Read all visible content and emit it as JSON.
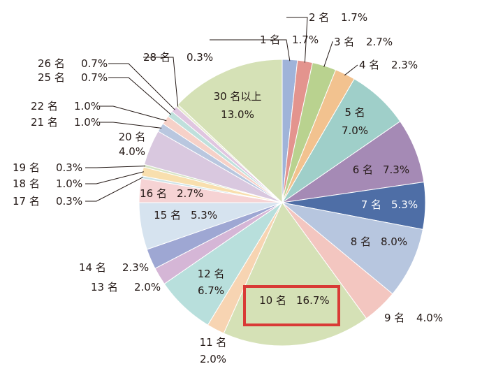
{
  "chart_data": {
    "type": "pie",
    "start": "12 o'clock",
    "direction": "clockwise",
    "slices": [
      {
        "label": "1 名",
        "value": 1.7,
        "pct": "1.7%",
        "color": "#9fb3d9"
      },
      {
        "label": "2 名",
        "value": 1.7,
        "pct": "1.7%",
        "color": "#e3948e"
      },
      {
        "label": "3 名",
        "value": 2.7,
        "pct": "2.7%",
        "color": "#b9d28f"
      },
      {
        "label": "4 名",
        "value": 2.3,
        "pct": "2.3%",
        "color": "#f2c28f"
      },
      {
        "label": "5 名",
        "value": 7.0,
        "pct": "7.0%",
        "color": "#9fcfc9"
      },
      {
        "label": "6 名",
        "value": 7.3,
        "pct": "7.3%",
        "color": "#a58ab5"
      },
      {
        "label": "7 名",
        "value": 5.3,
        "pct": "5.3%",
        "color": "#4e6ea6"
      },
      {
        "label": "8 名",
        "value": 8.0,
        "pct": "8.0%",
        "color": "#b7c6df"
      },
      {
        "label": "9 名",
        "value": 4.0,
        "pct": "4.0%",
        "color": "#f3c6c0"
      },
      {
        "label": "10 名",
        "value": 16.7,
        "pct": "16.7%",
        "color": "#d5e1b6",
        "highlight": true
      },
      {
        "label": "11 名",
        "value": 2.0,
        "pct": "2.0%",
        "color": "#f7d4b2"
      },
      {
        "label": "12 名",
        "value": 6.7,
        "pct": "6.7%",
        "color": "#b8dfdc"
      },
      {
        "label": "13 名",
        "value": 2.0,
        "pct": "2.0%",
        "color": "#d5b6d6"
      },
      {
        "label": "14 名",
        "value": 2.3,
        "pct": "2.3%",
        "color": "#9ea7d3"
      },
      {
        "label": "15 名",
        "value": 5.3,
        "pct": "5.3%",
        "color": "#d6e3ef"
      },
      {
        "label": "16 名",
        "value": 2.7,
        "pct": "2.7%",
        "color": "#f6d3d4"
      },
      {
        "label": "17 名",
        "value": 0.3,
        "pct": "0.3%",
        "color": "#cde3e8"
      },
      {
        "label": "18 名",
        "value": 1.0,
        "pct": "1.0%",
        "color": "#f8dfae"
      },
      {
        "label": "19 名",
        "value": 0.3,
        "pct": "0.3%",
        "color": "#d6e4c5"
      },
      {
        "label": "20 名",
        "value": 4.0,
        "pct": "4.0%",
        "color": "#d9c8df"
      },
      {
        "label": "21 名",
        "value": 1.0,
        "pct": "1.0%",
        "color": "#b9c7df"
      },
      {
        "label": "22 名",
        "value": 1.0,
        "pct": "1.0%",
        "color": "#f6d1c8"
      },
      {
        "label": "25 名",
        "value": 0.7,
        "pct": "0.7%",
        "color": "#bfe0dc"
      },
      {
        "label": "26 名",
        "value": 0.7,
        "pct": "0.7%",
        "color": "#e0c6e0"
      },
      {
        "label": "28 名",
        "value": 0.3,
        "pct": "0.3%",
        "color": "#e7ebcf"
      },
      {
        "label": "30 名以上",
        "value": 13.0,
        "pct": "13.0%",
        "color": "#d5e1b6"
      }
    ],
    "highlight_color": "#d93a36"
  }
}
